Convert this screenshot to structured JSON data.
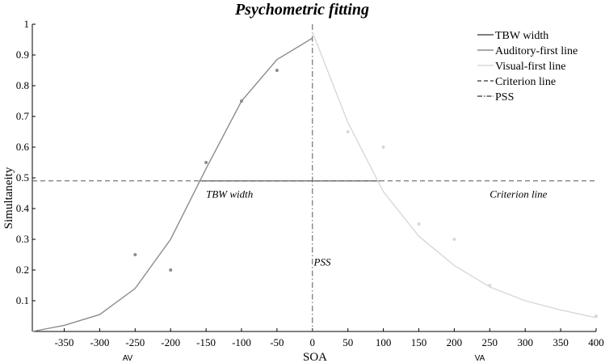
{
  "chart_data": {
    "type": "line",
    "title": "Psychometric fitting",
    "xlabel": "SOA",
    "ylabel": "Simultaneity",
    "xlim": [
      -395,
      400
    ],
    "ylim": [
      0,
      1
    ],
    "x_ticks": [
      -350,
      -300,
      -250,
      -200,
      -150,
      -100,
      -50,
      0,
      50,
      100,
      150,
      200,
      250,
      300,
      350,
      400
    ],
    "y_ticks": [
      0.1,
      0.2,
      0.3,
      0.4,
      0.5,
      0.6,
      0.7,
      0.8,
      0.9,
      1
    ],
    "side_labels": {
      "left": "AV",
      "right": "VA"
    },
    "series": [
      {
        "name": "Auditory-first line",
        "color": "#8c8c8c",
        "x": [
          -395,
          -350,
          -300,
          -250,
          -200,
          -150,
          -100,
          -50,
          0
        ],
        "y": [
          0.0,
          0.02,
          0.055,
          0.14,
          0.3,
          0.53,
          0.75,
          0.885,
          0.955
        ]
      },
      {
        "name": "Visual-first line",
        "color": "#d8d8d8",
        "x": [
          0,
          50,
          100,
          150,
          200,
          250,
          300,
          350,
          400
        ],
        "y": [
          0.975,
          0.68,
          0.455,
          0.31,
          0.215,
          0.145,
          0.1,
          0.07,
          0.045
        ]
      }
    ],
    "scatter": [
      {
        "group": "auditory-first",
        "color": "#8c8c8c",
        "x": [
          -250,
          -200,
          -150,
          -100,
          -50
        ],
        "y": [
          0.25,
          0.2,
          0.55,
          0.75,
          0.85
        ]
      },
      {
        "group": "visual-first",
        "color": "#d8d8d8",
        "x": [
          50,
          100,
          150,
          200,
          250,
          400
        ],
        "y": [
          0.65,
          0.6,
          0.35,
          0.3,
          0.15,
          0.05
        ]
      }
    ],
    "criterion": {
      "name": "Criterion line",
      "y": 0.49,
      "color": "#555555"
    },
    "tbw": {
      "name": "TBW width",
      "x_start": -160,
      "x_end": 95,
      "y": 0.49,
      "color": "#555555"
    },
    "pss": {
      "name": "PSS",
      "x": 0,
      "color": "#555555"
    },
    "annotations": [
      {
        "text": "TBW width",
        "x": -150,
        "y": 0.435
      },
      {
        "text": "Criterion line",
        "x": 250,
        "y": 0.435
      },
      {
        "text": "PSS",
        "x": 2,
        "y": 0.215
      }
    ],
    "legend": {
      "placement": "top-right",
      "entries": [
        {
          "label": "TBW width",
          "style": "solid",
          "color": "#555555"
        },
        {
          "label": "Auditory-first line",
          "style": "solid",
          "color": "#8c8c8c"
        },
        {
          "label": "Visual-first line",
          "style": "solid",
          "color": "#d8d8d8"
        },
        {
          "label": "Criterion line",
          "style": "dashed",
          "color": "#555555"
        },
        {
          "label": "PSS",
          "style": "dashdot",
          "color": "#555555"
        }
      ]
    }
  }
}
